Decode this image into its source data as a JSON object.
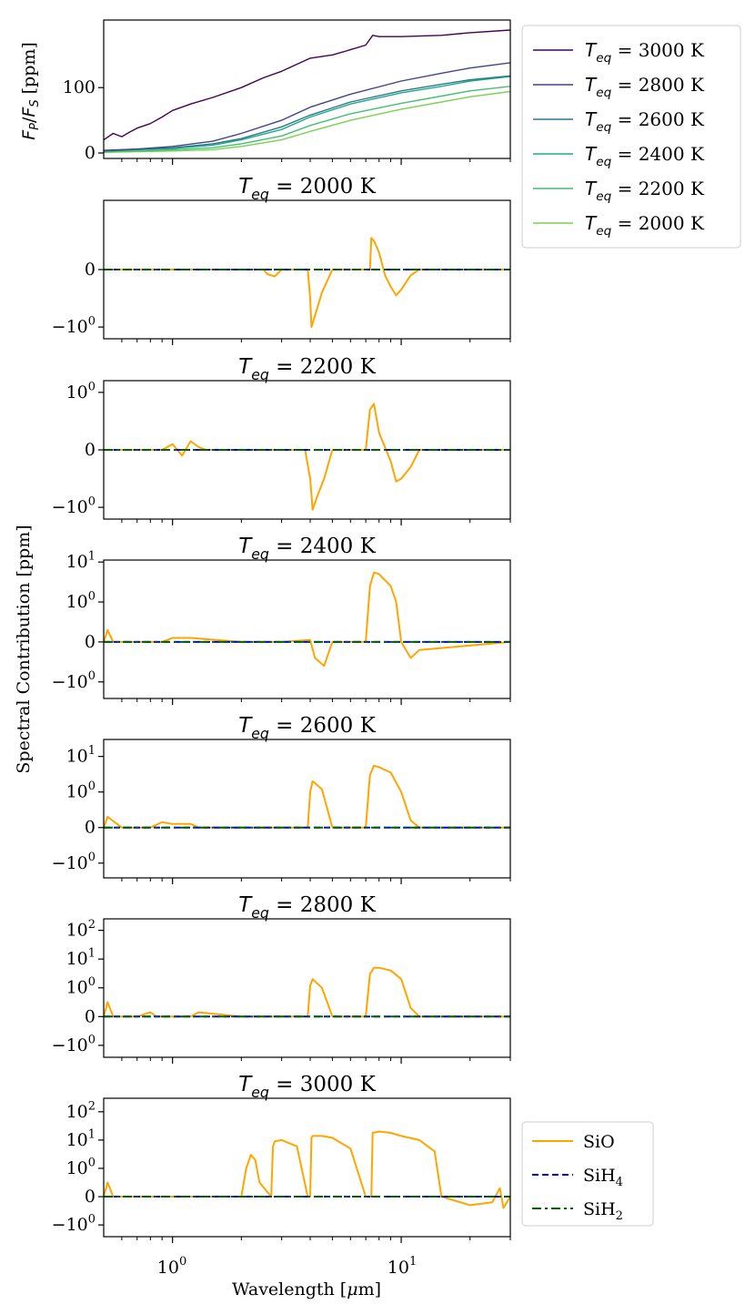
{
  "colors": {
    "t3000": "#440154",
    "t2800": "#414487",
    "t2600": "#2a788e",
    "t2400": "#22a884",
    "t2200": "#44bf70",
    "t2000": "#7ad151",
    "SiO": "#ffa500",
    "SiH4": "#0000ff",
    "SiH2": "#006400"
  },
  "labels": {
    "top_ylabel": "F_P/F_S [ppm]",
    "shared_ylabel": "Spectral Contribution [ppm]",
    "xlabel": "Wavelength [μm]",
    "xtick_1": "10",
    "xtick_1_exp": "0",
    "xtick_10": "10",
    "xtick_10_exp": "1"
  },
  "chart_data": [
    {
      "type": "line",
      "panel": "top",
      "ylabel": "F_P/F_S [ppm]",
      "x_scale": "log",
      "xlim": [
        0.5,
        30
      ],
      "ylim": [
        0,
        195
      ],
      "yticks": [
        "0",
        "100"
      ],
      "legend_placement": "outside right",
      "series": [
        {
          "name": "T_eq = 3000 K",
          "key": "t3000",
          "x": [
            0.5,
            0.55,
            0.6,
            0.65,
            0.7,
            0.8,
            0.9,
            1.0,
            1.2,
            1.5,
            2.0,
            2.5,
            3.0,
            4.0,
            5.0,
            6.0,
            7.0,
            7.5,
            8.0,
            10,
            15,
            20,
            30
          ],
          "y": [
            20,
            30,
            25,
            32,
            38,
            45,
            55,
            65,
            75,
            85,
            100,
            115,
            125,
            145,
            150,
            158,
            165,
            180,
            178,
            178,
            180,
            184,
            188
          ]
        },
        {
          "name": "T_eq = 2800 K",
          "key": "t2800",
          "x": [
            0.5,
            0.7,
            1.0,
            1.5,
            2.0,
            3.0,
            4.0,
            6.0,
            10,
            15,
            20,
            30
          ],
          "y": [
            4,
            6,
            10,
            18,
            30,
            50,
            70,
            90,
            110,
            122,
            130,
            138
          ]
        },
        {
          "name": "T_eq = 2600 K",
          "key": "t2600",
          "x": [
            0.5,
            0.7,
            1.0,
            1.5,
            2.0,
            3.0,
            4.0,
            6.0,
            10,
            15,
            20,
            30
          ],
          "y": [
            3,
            6,
            8,
            14,
            22,
            40,
            58,
            78,
            95,
            105,
            112,
            118
          ]
        },
        {
          "name": "T_eq = 2400 K",
          "key": "t2400",
          "x": [
            0.5,
            0.7,
            1.0,
            1.5,
            2.0,
            3.0,
            4.0,
            6.0,
            10,
            15,
            20,
            30
          ],
          "y": [
            3,
            5,
            7,
            12,
            20,
            36,
            55,
            75,
            92,
            102,
            110,
            117
          ]
        },
        {
          "name": "T_eq = 2200 K",
          "key": "t2200",
          "x": [
            0.5,
            0.7,
            1.0,
            1.5,
            2.0,
            3.0,
            4.0,
            6.0,
            10,
            15,
            20,
            30
          ],
          "y": [
            2,
            3,
            5,
            8,
            14,
            26,
            42,
            60,
            76,
            87,
            95,
            102
          ]
        },
        {
          "name": "T_eq = 2000 K",
          "key": "t2000",
          "x": [
            0.5,
            0.7,
            1.0,
            1.5,
            2.0,
            3.0,
            4.0,
            6.0,
            10,
            15,
            20,
            30
          ],
          "y": [
            1,
            2,
            3,
            5,
            10,
            20,
            33,
            50,
            67,
            78,
            86,
            94
          ]
        }
      ]
    },
    {
      "type": "line",
      "panel": "contribution",
      "title": "T_eq = 2000 K",
      "x_scale": "log",
      "y_scale": "symlog",
      "xlim": [
        0.5,
        30
      ],
      "ylim": [
        -1.6,
        1.6
      ],
      "yticks": [
        "0",
        "−10^0"
      ],
      "series": [
        {
          "name": "SiO",
          "key": "SiO",
          "style": "solid",
          "x": [
            0.5,
            2.5,
            2.6,
            2.8,
            3.0,
            3.9,
            4.0,
            4.05,
            4.2,
            4.5,
            5.0,
            7.0,
            7.3,
            7.4,
            7.6,
            8.0,
            8.5,
            9.0,
            9.5,
            10,
            11,
            12,
            30
          ],
          "y": [
            0,
            0,
            -0.08,
            -0.12,
            0,
            0,
            -0.5,
            -1.0,
            -0.8,
            -0.4,
            0,
            0,
            0,
            0.55,
            0.5,
            0.3,
            -0.1,
            -0.3,
            -0.45,
            -0.35,
            -0.1,
            0,
            0
          ]
        },
        {
          "name": "SiH4",
          "key": "SiH4",
          "style": "dashed",
          "x": [
            0.5,
            30
          ],
          "y": [
            0,
            0
          ]
        },
        {
          "name": "SiH2",
          "key": "SiH2",
          "style": "dashdot",
          "x": [
            0.5,
            30
          ],
          "y": [
            0,
            0
          ]
        }
      ]
    },
    {
      "type": "line",
      "panel": "contribution",
      "title": "T_eq = 2200 K",
      "x_scale": "log",
      "y_scale": "symlog",
      "xlim": [
        0.5,
        30
      ],
      "ylim": [
        -1.6,
        1.6
      ],
      "yticks": [
        "10^0",
        "0",
        "−10^0"
      ],
      "series": [
        {
          "name": "SiO",
          "key": "SiO",
          "style": "solid",
          "x": [
            0.5,
            0.9,
            1.0,
            1.1,
            1.2,
            1.3,
            1.4,
            2.0,
            3.8,
            4.0,
            4.1,
            4.3,
            4.6,
            5.0,
            7.0,
            7.3,
            7.6,
            8.0,
            9.0,
            9.5,
            10,
            11,
            12,
            30
          ],
          "y": [
            0,
            0,
            0.1,
            -0.1,
            0.15,
            0.05,
            0,
            0,
            0,
            -0.5,
            -1.1,
            -0.8,
            -0.5,
            0,
            0,
            0.7,
            0.8,
            0.3,
            -0.2,
            -0.55,
            -0.5,
            -0.3,
            0,
            0
          ]
        },
        {
          "name": "SiH4",
          "key": "SiH4",
          "style": "dashed",
          "x": [
            0.5,
            30
          ],
          "y": [
            0,
            0
          ]
        },
        {
          "name": "SiH2",
          "key": "SiH2",
          "style": "dashdot",
          "x": [
            0.5,
            30
          ],
          "y": [
            0,
            0
          ]
        }
      ]
    },
    {
      "type": "line",
      "panel": "contribution",
      "title": "T_eq = 2400 K",
      "x_scale": "log",
      "y_scale": "symlog",
      "xlim": [
        0.5,
        30
      ],
      "ylim": [
        -2.6,
        11.2
      ],
      "yticks": [
        "10^1",
        "10^0",
        "0",
        "−10^0"
      ],
      "series": [
        {
          "name": "SiO",
          "key": "SiO",
          "style": "solid",
          "x": [
            0.5,
            0.52,
            0.55,
            0.9,
            1.0,
            1.2,
            2.0,
            3.0,
            4.0,
            4.2,
            4.6,
            5.0,
            7.0,
            7.3,
            7.6,
            8.0,
            9.0,
            9.5,
            10,
            11,
            12,
            30
          ],
          "y": [
            0,
            0.3,
            0,
            0,
            0.1,
            0.1,
            0,
            0,
            0.05,
            -0.4,
            -0.6,
            0,
            0,
            2.5,
            5.5,
            5.0,
            2.5,
            1.0,
            0,
            -0.4,
            -0.2,
            0
          ]
        },
        {
          "name": "SiH4",
          "key": "SiH4",
          "style": "dashed",
          "x": [
            0.5,
            30
          ],
          "y": [
            0,
            0
          ]
        },
        {
          "name": "SiH2",
          "key": "SiH2",
          "style": "dashdot",
          "x": [
            0.5,
            30
          ],
          "y": [
            0,
            0
          ]
        }
      ]
    },
    {
      "type": "line",
      "panel": "contribution",
      "title": "T_eq = 2600 K",
      "x_scale": "log",
      "y_scale": "symlog",
      "xlim": [
        0.5,
        30
      ],
      "ylim": [
        -2.6,
        30
      ],
      "yticks": [
        "10^1",
        "10^0",
        "0",
        "−10^0"
      ],
      "series": [
        {
          "name": "SiO",
          "key": "SiO",
          "style": "solid",
          "x": [
            0.5,
            0.52,
            0.6,
            0.8,
            0.9,
            1.0,
            1.2,
            1.3,
            2.0,
            3.9,
            4.0,
            4.1,
            4.5,
            5.0,
            7.0,
            7.3,
            7.6,
            8.0,
            9.0,
            10,
            11,
            12,
            30
          ],
          "y": [
            0,
            0.3,
            0,
            0,
            0.15,
            0.1,
            0.1,
            0,
            0,
            0,
            1.0,
            2.0,
            1.2,
            0,
            0,
            3.0,
            5.5,
            5.0,
            3.5,
            1.0,
            0.2,
            0,
            0
          ]
        },
        {
          "name": "SiH4",
          "key": "SiH4",
          "style": "dashed",
          "x": [
            0.5,
            30
          ],
          "y": [
            0,
            0
          ]
        },
        {
          "name": "SiH2",
          "key": "SiH2",
          "style": "dashdot",
          "x": [
            0.5,
            30
          ],
          "y": [
            0,
            0
          ]
        }
      ]
    },
    {
      "type": "line",
      "panel": "contribution",
      "title": "T_eq = 2800 K",
      "x_scale": "log",
      "y_scale": "symlog",
      "xlim": [
        0.5,
        30
      ],
      "ylim": [
        -2.6,
        250
      ],
      "yticks": [
        "10^2",
        "10^1",
        "10^0",
        "0",
        "−10^0"
      ],
      "series": [
        {
          "name": "SiO",
          "key": "SiO",
          "style": "solid",
          "x": [
            0.5,
            0.52,
            0.55,
            0.7,
            0.8,
            0.85,
            1.2,
            1.3,
            2.0,
            3.9,
            4.0,
            4.1,
            4.5,
            5.0,
            7.0,
            7.3,
            7.6,
            8.0,
            9.0,
            10,
            11,
            12,
            30
          ],
          "y": [
            0,
            0.5,
            0,
            0,
            0.15,
            0,
            0,
            0.15,
            0,
            0,
            1.2,
            2.0,
            1.0,
            0,
            0,
            3.0,
            5.0,
            5.0,
            4.0,
            2.0,
            0.3,
            0,
            0
          ]
        },
        {
          "name": "SiH4",
          "key": "SiH4",
          "style": "dashed",
          "x": [
            0.5,
            30
          ],
          "y": [
            0,
            0
          ]
        },
        {
          "name": "SiH2",
          "key": "SiH2",
          "style": "dashdot",
          "x": [
            0.5,
            30
          ],
          "y": [
            0,
            0
          ]
        }
      ]
    },
    {
      "type": "line",
      "panel": "contribution",
      "title": "T_eq = 3000 K",
      "x_scale": "log",
      "y_scale": "symlog",
      "xlim": [
        0.5,
        30
      ],
      "ylim": [
        -2.6,
        300
      ],
      "yticks": [
        "10^2",
        "10^1",
        "10^0",
        "0",
        "−10^0"
      ],
      "legend_placement": "outside right",
      "series": [
        {
          "name": "SiO",
          "key": "SiO",
          "style": "solid",
          "x": [
            0.5,
            0.52,
            0.55,
            2.0,
            2.1,
            2.2,
            2.3,
            2.4,
            2.7,
            2.75,
            2.8,
            3.0,
            3.5,
            3.9,
            4.0,
            4.05,
            4.1,
            4.5,
            5.0,
            6.0,
            7.0,
            7.4,
            7.5,
            8.0,
            9.0,
            10,
            12,
            14,
            15,
            20,
            25,
            27,
            28,
            30
          ],
          "y": [
            0,
            0.5,
            0,
            0,
            1.0,
            3.0,
            2.0,
            0.5,
            0,
            6.0,
            9.0,
            10,
            6.0,
            0,
            0,
            12,
            14,
            14,
            12,
            5.0,
            0,
            0,
            18,
            20,
            18,
            14,
            10,
            4.0,
            0,
            -0.3,
            -0.2,
            0.3,
            -0.4,
            0
          ]
        },
        {
          "name": "SiH4",
          "key": "SiH4",
          "style": "dashed",
          "x": [
            0.5,
            30
          ],
          "y": [
            0,
            0
          ]
        },
        {
          "name": "SiH2",
          "key": "SiH2",
          "style": "dashdot",
          "x": [
            0.5,
            30
          ],
          "y": [
            0,
            0
          ]
        }
      ]
    }
  ]
}
